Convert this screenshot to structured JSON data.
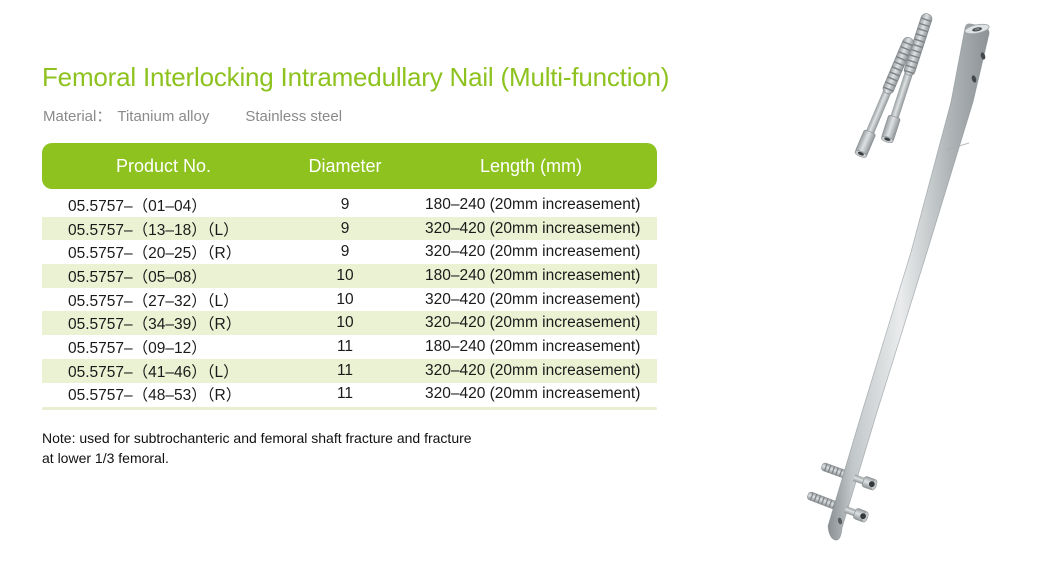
{
  "page": {
    "title": "Femoral Interlocking Intramedullary Nail (Multi-function)",
    "material": {
      "label": "Material：",
      "options": [
        "Titanium alloy",
        "Stainless steel"
      ]
    },
    "note": {
      "line1": "Note: used for subtrochanteric and femoral shaft fracture and fracture",
      "line2": "at lower 1/3 femoral."
    }
  },
  "table": {
    "headers": [
      "Product No.",
      "Diameter",
      "Length (mm)"
    ],
    "rows": [
      {
        "product_no": "05.5757–（01–04）",
        "diameter": "9",
        "length": "180–240 (20mm increasement)"
      },
      {
        "product_no": "05.5757–（13–18）（L）",
        "diameter": "9",
        "length": "320–420 (20mm increasement)"
      },
      {
        "product_no": "05.5757–（20–25）（R）",
        "diameter": "9",
        "length": "320–420 (20mm increasement)"
      },
      {
        "product_no": "05.5757–（05–08）",
        "diameter": "10",
        "length": "180–240 (20mm increasement)"
      },
      {
        "product_no": "05.5757–（27–32）（L）",
        "diameter": "10",
        "length": "320–420 (20mm increasement)"
      },
      {
        "product_no": "05.5757–（34–39）（R）",
        "diameter": "10",
        "length": "320–420 (20mm increasement)"
      },
      {
        "product_no": "05.5757–（09–12）",
        "diameter": "11",
        "length": "180–240 (20mm increasement)"
      },
      {
        "product_no": "05.5757–（41–46）（L）",
        "diameter": "11",
        "length": "320–420 (20mm increasement)"
      },
      {
        "product_no": "05.5757–（48–53）（R）",
        "diameter": "11",
        "length": "320–420 (20mm increasement)"
      }
    ]
  },
  "image": {
    "name": "intramedullary-nail-product-photo",
    "description": "Curved femoral nail with two proximal crossing screws and two distal locking screws"
  },
  "colors": {
    "accent_green": "#8dc21f",
    "row_alt_green": "#eaf2d3",
    "table_bottom_strip": "#e7eed2",
    "header_text": "#ffffff",
    "body_text": "#1a1a1a",
    "muted_text": "#8a8a8a",
    "background": "#ffffff"
  }
}
